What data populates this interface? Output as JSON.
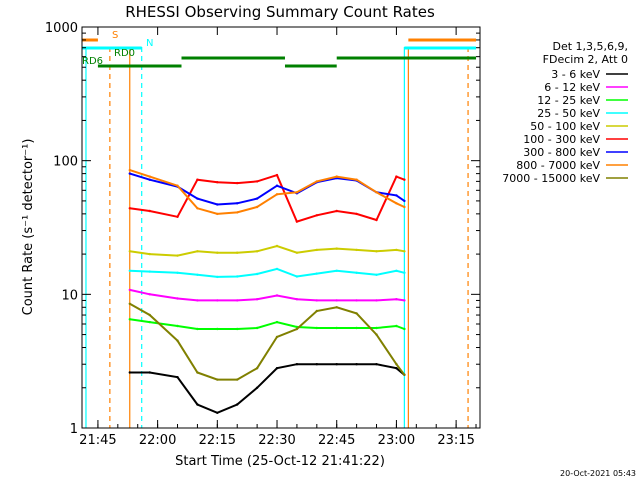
{
  "chart_data": {
    "type": "line",
    "title": "RHESSI Observing Summary Count Rates",
    "xlabel": "Start Time (25-Oct-12 21:41:22)",
    "ylabel": "Count Rate (s⁻¹ detector⁻¹)",
    "y_scale": "log",
    "ylim": [
      1,
      1000
    ],
    "xlim": [
      "21:41",
      "23:21"
    ],
    "x_ticks": [
      "21:45",
      "22:00",
      "22:15",
      "22:30",
      "22:45",
      "23:00",
      "23:15"
    ],
    "y_ticks": [
      "1",
      "10",
      "100",
      "1000"
    ],
    "legend_header": [
      "Det 1,3,5,6,9,",
      "FDecim 2, Att 0"
    ],
    "legend_position": "right",
    "series": [
      {
        "name": "3 - 6 keV",
        "color": "#000000",
        "x": [
          "21:53",
          "21:58",
          "22:05",
          "22:10",
          "22:15",
          "22:20",
          "22:25",
          "22:30",
          "22:35",
          "22:40",
          "22:45",
          "22:50",
          "22:55",
          "23:00",
          "23:02"
        ],
        "values": [
          2.6,
          2.6,
          2.4,
          1.5,
          1.3,
          1.5,
          2.0,
          2.8,
          3.0,
          3.0,
          3.0,
          3.0,
          3.0,
          2.8,
          2.5
        ]
      },
      {
        "name": "6 - 12 keV",
        "color": "#ff00ff",
        "x": [
          "21:53",
          "21:58",
          "22:05",
          "22:10",
          "22:15",
          "22:20",
          "22:25",
          "22:30",
          "22:35",
          "22:40",
          "22:45",
          "22:50",
          "22:55",
          "23:00",
          "23:02"
        ],
        "values": [
          10.8,
          10.0,
          9.3,
          9.0,
          9.0,
          9.0,
          9.2,
          9.8,
          9.2,
          9.0,
          9.0,
          9.0,
          9.0,
          9.2,
          9.0
        ]
      },
      {
        "name": "12 - 25 keV",
        "color": "#00ff00",
        "x": [
          "21:53",
          "21:58",
          "22:05",
          "22:10",
          "22:15",
          "22:20",
          "22:25",
          "22:30",
          "22:35",
          "22:40",
          "22:45",
          "22:50",
          "22:55",
          "23:00",
          "23:02"
        ],
        "values": [
          6.5,
          6.2,
          5.8,
          5.5,
          5.5,
          5.5,
          5.6,
          6.2,
          5.7,
          5.6,
          5.6,
          5.6,
          5.6,
          5.8,
          5.5
        ]
      },
      {
        "name": "25 - 50 keV",
        "color": "#00ffff",
        "x": [
          "21:53",
          "21:58",
          "22:05",
          "22:10",
          "22:15",
          "22:20",
          "22:25",
          "22:30",
          "22:35",
          "22:40",
          "22:45",
          "22:50",
          "22:55",
          "23:00",
          "23:02"
        ],
        "values": [
          15,
          14.8,
          14.5,
          14,
          13.5,
          13.6,
          14.2,
          15.5,
          13.6,
          14.3,
          15,
          14.5,
          14,
          15,
          14.5
        ]
      },
      {
        "name": "50 - 100 keV",
        "color": "#cccc00",
        "x": [
          "21:53",
          "21:58",
          "22:05",
          "22:10",
          "22:15",
          "22:20",
          "22:25",
          "22:30",
          "22:35",
          "22:40",
          "22:45",
          "22:50",
          "22:55",
          "23:00",
          "23:02"
        ],
        "values": [
          21,
          20,
          19.5,
          21,
          20.5,
          20.5,
          21,
          23,
          20.5,
          21.5,
          22,
          21.5,
          21,
          21.5,
          21
        ]
      },
      {
        "name": "100 - 300 keV",
        "color": "#ff0000",
        "x": [
          "21:53",
          "21:58",
          "22:05",
          "22:10",
          "22:15",
          "22:20",
          "22:25",
          "22:30",
          "22:35",
          "22:40",
          "22:45",
          "22:50",
          "22:55",
          "23:00",
          "23:02"
        ],
        "values": [
          44,
          42,
          38,
          72,
          69,
          68,
          70,
          78,
          35,
          39,
          42,
          40,
          36,
          76,
          72
        ]
      },
      {
        "name": "300 - 800 keV",
        "color": "#0000ff",
        "x": [
          "21:53",
          "21:58",
          "22:05",
          "22:10",
          "22:15",
          "22:20",
          "22:25",
          "22:30",
          "22:35",
          "22:40",
          "22:45",
          "22:50",
          "22:55",
          "23:00",
          "23:02"
        ],
        "values": [
          80,
          72,
          64,
          52,
          47,
          48,
          52,
          65,
          57,
          69,
          74,
          71,
          58,
          55,
          50
        ]
      },
      {
        "name": "800 - 7000 keV",
        "color": "#ff8000",
        "x": [
          "21:53",
          "21:58",
          "22:05",
          "22:10",
          "22:15",
          "22:20",
          "22:25",
          "22:30",
          "22:35",
          "22:40",
          "22:45",
          "22:50",
          "22:55",
          "23:00",
          "23:02"
        ],
        "values": [
          85,
          76,
          65,
          44,
          40,
          41,
          45,
          56,
          58,
          70,
          76,
          72,
          58,
          48,
          45
        ]
      },
      {
        "name": "7000 - 15000 keV",
        "color": "#808000",
        "x": [
          "21:53",
          "21:58",
          "22:05",
          "22:10",
          "22:15",
          "22:20",
          "22:25",
          "22:30",
          "22:35",
          "22:40",
          "22:45",
          "22:50",
          "22:55",
          "23:00",
          "23:02"
        ],
        "values": [
          8.5,
          7.0,
          4.5,
          2.6,
          2.3,
          2.3,
          2.8,
          4.8,
          5.5,
          7.5,
          8.0,
          7.2,
          5.0,
          3.0,
          2.5
        ]
      }
    ],
    "flags": {
      "segments": [
        {
          "label": "S",
          "color": "#ff8000",
          "ranges": [
            [
              "21:41",
              "21:45"
            ],
            [
              "23:03",
              "23:20"
            ]
          ]
        },
        {
          "label": "N",
          "color": "#00ffff",
          "ranges": [
            [
              "21:41",
              "21:56"
            ],
            [
              "23:02",
              "23:20"
            ]
          ]
        },
        {
          "label": "RD0",
          "color": "#008000",
          "ranges": [
            [
              "22:06",
              "22:32"
            ],
            [
              "22:45",
              "23:20"
            ]
          ]
        },
        {
          "label": "RD6",
          "color": "#008000",
          "ranges": [
            [
              "21:45",
              "22:06"
            ],
            [
              "22:32",
              "22:45"
            ]
          ]
        }
      ],
      "markers": [
        {
          "name": "dashed-orange",
          "color": "#ff8000",
          "dashed": true,
          "x": [
            "21:48",
            "23:18"
          ]
        },
        {
          "name": "dashed-cyan",
          "color": "#00ffff",
          "dashed": true,
          "x": [
            "21:56"
          ]
        },
        {
          "name": "solid-orange",
          "color": "#ff8000",
          "dashed": false,
          "x": [
            "21:53",
            "23:03"
          ]
        },
        {
          "name": "solid-cyan",
          "color": "#00ffff",
          "dashed": false,
          "x": [
            "21:42",
            "23:02"
          ]
        }
      ]
    }
  },
  "footer": {
    "timestamp": "20-Oct-2021 05:43"
  }
}
